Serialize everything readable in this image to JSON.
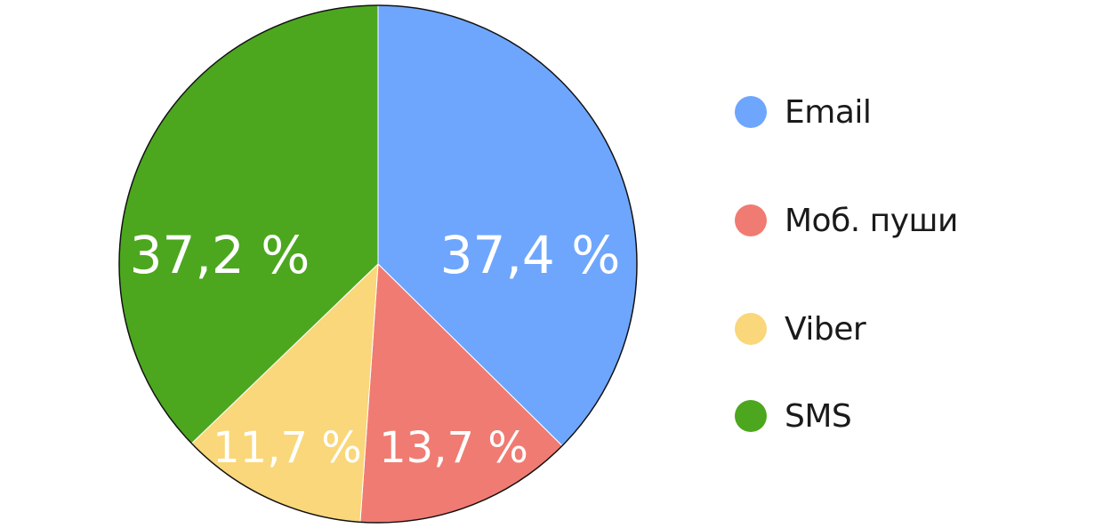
{
  "chart_data": {
    "type": "pie",
    "title": "",
    "start": "12 o'clock",
    "direction": "clockwise",
    "slices": [
      {
        "name": "Email",
        "value": 37.4,
        "label": "37,4 %",
        "color": "#6ea6fe"
      },
      {
        "name": "Моб. пуши",
        "value": 13.7,
        "label": "13,7 %",
        "color": "#f07b72"
      },
      {
        "name": "Viber",
        "value": 11.7,
        "label": "11,7 %",
        "color": "#f9d77a"
      },
      {
        "name": "SMS",
        "value": 37.2,
        "label": "37,2 %",
        "color": "#4ca71e"
      }
    ],
    "legend": {
      "placement": "right",
      "entries": [
        "Email",
        "Моб. пуши",
        "Viber",
        "SMS"
      ]
    }
  }
}
